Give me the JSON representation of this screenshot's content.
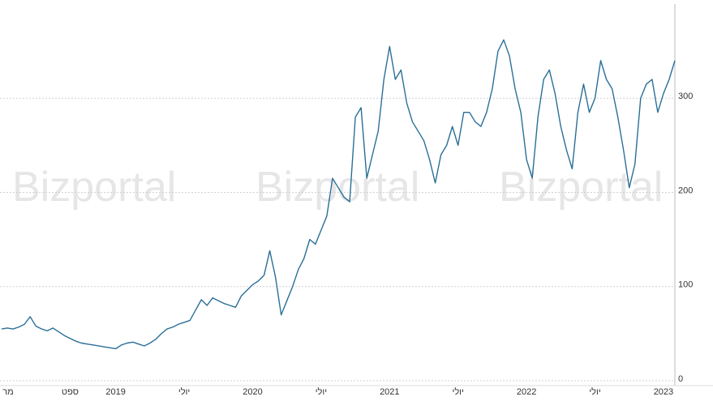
{
  "chart_data": {
    "type": "line",
    "watermark": "Bizportal",
    "color": "#2a6f97",
    "categories": [
      "מר",
      null,
      null,
      null,
      null,
      null,
      null,
      null,
      null,
      null,
      null,
      null,
      "ספט",
      null,
      null,
      null,
      null,
      null,
      null,
      null,
      "2019",
      null,
      null,
      null,
      null,
      null,
      null,
      null,
      null,
      null,
      null,
      null,
      "יולי",
      null,
      null,
      null,
      null,
      null,
      null,
      null,
      null,
      null,
      null,
      null,
      "2020",
      null,
      null,
      null,
      null,
      null,
      null,
      null,
      null,
      null,
      null,
      null,
      "יולי",
      null,
      null,
      null,
      null,
      null,
      null,
      null,
      null,
      null,
      null,
      null,
      "2021",
      null,
      null,
      null,
      null,
      null,
      null,
      null,
      null,
      null,
      null,
      null,
      "יולי",
      null,
      null,
      null,
      null,
      null,
      null,
      null,
      null,
      null,
      null,
      null,
      "2022",
      null,
      null,
      null,
      null,
      null,
      null,
      null,
      null,
      null,
      null,
      null,
      "יולי",
      null,
      null,
      null,
      null,
      null,
      null,
      null,
      null,
      null,
      null,
      null,
      "2023",
      null,
      null
    ],
    "values": [
      55,
      56,
      55,
      57,
      60,
      68,
      58,
      55,
      53,
      56,
      52,
      48,
      45,
      42,
      40,
      39,
      38,
      37,
      36,
      35,
      34,
      38,
      40,
      41,
      39,
      37,
      40,
      44,
      50,
      55,
      57,
      60,
      62,
      64,
      75,
      86,
      80,
      88,
      85,
      82,
      80,
      78,
      90,
      96,
      102,
      106,
      112,
      138,
      110,
      70,
      85,
      100,
      118,
      130,
      150,
      145,
      160,
      175,
      215,
      205,
      195,
      190,
      280,
      290,
      215,
      240,
      265,
      320,
      355,
      320,
      330,
      295,
      275,
      265,
      255,
      235,
      210,
      240,
      250,
      270,
      250,
      285,
      285,
      275,
      270,
      285,
      310,
      350,
      362,
      345,
      310,
      285,
      235,
      215,
      280,
      320,
      330,
      305,
      270,
      245,
      225,
      285,
      315,
      285,
      300,
      340,
      320,
      310,
      280,
      245,
      205,
      230,
      300,
      315,
      320,
      285,
      305,
      320,
      340
    ],
    "ylim": [
      0,
      400
    ],
    "yticks": [
      0,
      100,
      200,
      300
    ],
    "grid": true
  }
}
